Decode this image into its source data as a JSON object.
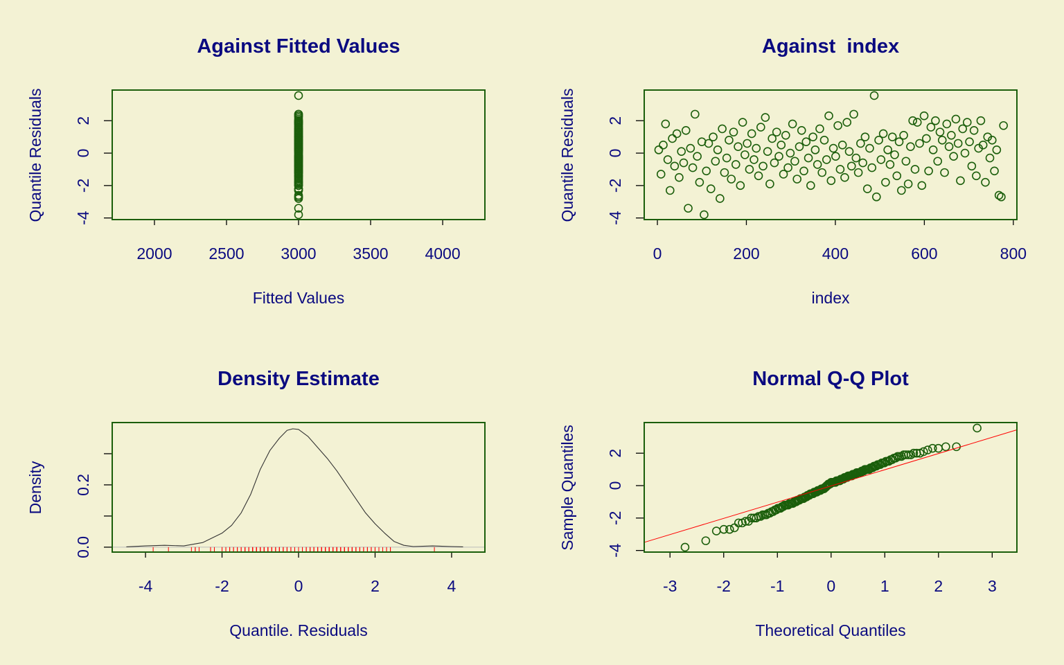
{
  "colors": {
    "background": "#F3F2D4",
    "points": "#1B5E0B",
    "box": "#1B5E0B",
    "text": "#0A0A80",
    "rug": "#FF0000",
    "qqline": "#FF0000",
    "density": "#333333"
  },
  "residuals": [
    0.2,
    -1.3,
    0.5,
    1.8,
    -0.4,
    -2.3,
    0.9,
    -0.8,
    1.2,
    -1.5,
    0.1,
    -0.6,
    1.4,
    -3.4,
    0.3,
    -0.9,
    2.4,
    -0.2,
    -1.8,
    0.7,
    -3.8,
    -1.1,
    0.6,
    -2.2,
    1.0,
    -0.5,
    0.2,
    -2.8,
    1.5,
    -1.2,
    -0.3,
    0.8,
    -1.6,
    1.3,
    -0.7,
    0.4,
    -2.0,
    1.9,
    -0.1,
    0.6,
    -1.0,
    1.2,
    -0.4,
    0.3,
    -1.4,
    1.6,
    -0.8,
    2.2,
    0.1,
    -1.9,
    0.9,
    -0.6,
    1.3,
    -0.2,
    0.5,
    -1.3,
    1.1,
    -0.9,
    0.0,
    1.8,
    -0.5,
    -1.6,
    0.4,
    1.4,
    -1.1,
    0.7,
    -0.3,
    -2.0,
    1.0,
    0.2,
    -0.7,
    1.5,
    -1.2,
    0.8,
    -0.4,
    2.3,
    -1.7,
    0.3,
    -0.2,
    1.7,
    -1.0,
    0.5,
    -1.5,
    1.9,
    0.1,
    -0.8,
    2.4,
    -0.3,
    -1.2,
    0.6,
    -0.6,
    1.0,
    -2.2,
    0.3,
    -0.9,
    3.55,
    -2.7,
    0.8,
    -0.4,
    1.2,
    -1.8,
    0.2,
    -0.7,
    1.0,
    -0.1,
    -1.4,
    0.7,
    -2.3,
    1.1,
    -0.5,
    -1.9,
    0.4,
    2.0,
    -1.0,
    1.9,
    0.6,
    -2.0,
    2.3,
    0.9,
    -1.1,
    1.6,
    0.2,
    2.0,
    -0.5,
    1.3,
    0.8,
    -1.2,
    1.8,
    0.4,
    1.1,
    -0.2,
    2.1,
    0.6,
    -1.7,
    1.5,
    0.0,
    1.9,
    0.7,
    -0.8,
    1.4,
    -1.4,
    0.3,
    2.0,
    0.5,
    -1.8,
    1.0,
    -0.3,
    0.8,
    -1.1,
    0.2,
    -2.6,
    -2.7,
    1.7
  ],
  "chart_data": [
    {
      "type": "scatter",
      "title": "Against Fitted Values",
      "xlabel": "Fitted Values",
      "ylabel": "Quantile Residuals",
      "fitted_value": 3000,
      "xlim": [
        1707,
        4293
      ],
      "ylim": [
        -4.1,
        3.89
      ],
      "xticks": [
        2000,
        2500,
        3000,
        3500,
        4000
      ],
      "yticks": [
        -4,
        -2,
        0,
        2
      ],
      "ytick_labels": [
        "-4",
        "-2",
        "0",
        "2"
      ]
    },
    {
      "type": "scatter",
      "title": "Against  index",
      "xlabel": "index",
      "ylabel": "Quantile Residuals",
      "n": 780,
      "xlim": [
        -29.6,
        808
      ],
      "ylim": [
        -4.1,
        3.89
      ],
      "xticks": [
        0,
        200,
        400,
        600,
        800
      ],
      "yticks": [
        -4,
        -2,
        0,
        2
      ],
      "ytick_labels": [
        "-4",
        "-2",
        "0",
        "2"
      ]
    },
    {
      "type": "line",
      "title": "Density Estimate",
      "xlabel": "Quantile. Residuals",
      "ylabel": "Density",
      "xlim": [
        -4.87,
        4.87
      ],
      "ylim": [
        -0.0158,
        0.4
      ],
      "xticks": [
        -4,
        -2,
        0,
        2,
        4
      ],
      "yticks": [
        0,
        0.1,
        0.2,
        0.3
      ],
      "ytick_labels": [
        "0.0",
        "",
        "0.2",
        ""
      ],
      "density": {
        "x": [
          -4.5,
          -4,
          -3.5,
          -3,
          -2.5,
          -2,
          -1.75,
          -1.5,
          -1.25,
          -1,
          -0.75,
          -0.5,
          -0.3,
          -0.15,
          0,
          0.25,
          0.5,
          0.75,
          1,
          1.25,
          1.5,
          1.75,
          2,
          2.25,
          2.5,
          2.75,
          3,
          3.5,
          4,
          4.3
        ],
        "y": [
          0.001,
          0.004,
          0.006,
          0.004,
          0.015,
          0.045,
          0.07,
          0.11,
          0.17,
          0.25,
          0.31,
          0.35,
          0.375,
          0.38,
          0.378,
          0.355,
          0.32,
          0.285,
          0.245,
          0.2,
          0.155,
          0.11,
          0.075,
          0.045,
          0.018,
          0.006,
          0.002,
          0.004,
          0.002,
          0.001
        ]
      },
      "rug": "residuals"
    },
    {
      "type": "scatter",
      "title": "Normal Q-Q Plot",
      "xlabel": "Theoretical Quantiles",
      "ylabel": "Sample Quantiles",
      "xlim": [
        -3.48,
        3.46
      ],
      "ylim": [
        -4.1,
        3.89
      ],
      "xticks": [
        -3,
        -2,
        -1,
        0,
        1,
        2,
        3
      ],
      "yticks": [
        -4,
        -2,
        0,
        2
      ],
      "ytick_labels": [
        "-4",
        "-2",
        "0",
        "2"
      ],
      "qqline": {
        "intercept": -0.02,
        "slope": 1.0
      }
    }
  ]
}
